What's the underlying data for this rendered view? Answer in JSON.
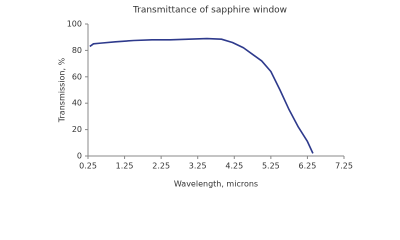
{
  "chart_data": {
    "type": "line",
    "title": "Transmittance of sapphire window",
    "x_label": "Wavelength, microns",
    "y_label": "Transmission, %",
    "x": [
      0.3,
      0.4,
      0.6,
      1.0,
      1.5,
      2.0,
      2.5,
      3.0,
      3.5,
      3.9,
      4.2,
      4.5,
      4.8,
      5.0,
      5.25,
      5.5,
      5.75,
      6.0,
      6.25,
      6.4
    ],
    "series": [
      {
        "name": "Transmittance",
        "color": "#2e3a8c",
        "values": [
          83,
          85,
          85.5,
          86.5,
          87.5,
          88,
          88,
          88.5,
          89,
          88.5,
          86,
          82,
          76,
          72,
          64,
          50,
          35,
          22,
          11,
          2
        ]
      }
    ],
    "xlim": [
      0.25,
      7.25
    ],
    "xticks": [
      0.25,
      1.25,
      2.25,
      3.25,
      4.25,
      5.25,
      6.25,
      7.25
    ],
    "ylim": [
      0,
      100
    ],
    "yticks": [
      0,
      20,
      40,
      60,
      80,
      100
    ],
    "grid": false
  }
}
